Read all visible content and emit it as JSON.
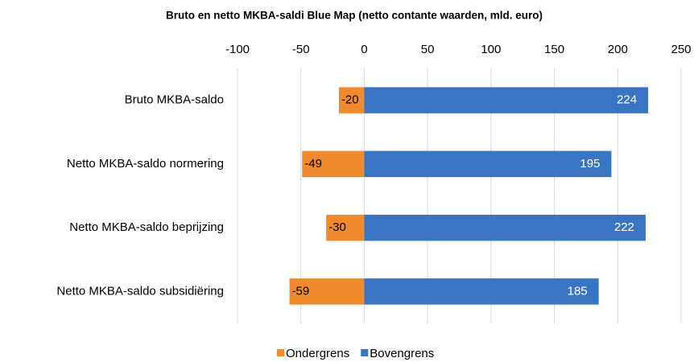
{
  "chart_data": {
    "type": "bar",
    "orientation": "horizontal",
    "title": "Bruto en netto MKBA-saldi Blue Map (netto contante waarden, mld. euro)",
    "categories": [
      "Bruto MKBA-saldo",
      "Netto MKBA-saldo normering",
      "Netto MKBA-saldo beprijzing",
      "Netto MKBA-saldo subsidiëring"
    ],
    "series": [
      {
        "name": "Ondergrens",
        "color": "#f08a2c",
        "values": [
          -20,
          -49,
          -30,
          -59
        ]
      },
      {
        "name": "Bovengrens",
        "color": "#3a75c4",
        "values": [
          224,
          195,
          222,
          185
        ]
      }
    ],
    "xlim": [
      -100,
      250
    ],
    "xticks": [
      -100,
      -50,
      0,
      50,
      100,
      150,
      200,
      250
    ],
    "grid": true,
    "legend": "bottom"
  }
}
